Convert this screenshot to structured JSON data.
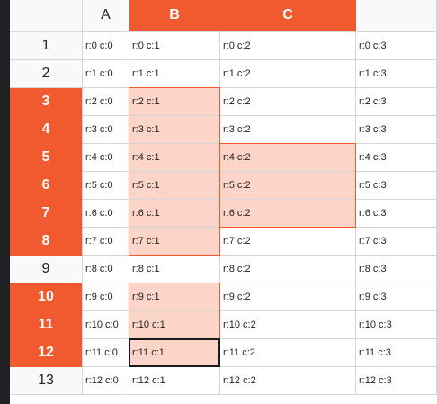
{
  "columns": [
    "",
    "A",
    "B",
    "C",
    ""
  ],
  "selected_columns": [
    "B",
    "C"
  ],
  "rows": [
    {
      "num": "1",
      "selected": false,
      "cells": [
        "r:0 c:0",
        "r:0 c:1",
        "r:0 c:2",
        "r:0 c:3"
      ]
    },
    {
      "num": "2",
      "selected": false,
      "cells": [
        "r:1 c:0",
        "r:1 c:1",
        "r:1 c:2",
        "r:1 c:3"
      ]
    },
    {
      "num": "3",
      "selected": true,
      "cells": [
        "r:2 c:0",
        "r:2 c:1",
        "r:2 c:2",
        "r:2 c:3"
      ]
    },
    {
      "num": "4",
      "selected": true,
      "cells": [
        "r:3 c:0",
        "r:3 c:1",
        "r:3 c:2",
        "r:3 c:3"
      ]
    },
    {
      "num": "5",
      "selected": true,
      "cells": [
        "r:4 c:0",
        "r:4 c:1",
        "r:4 c:2",
        "r:4 c:3"
      ]
    },
    {
      "num": "6",
      "selected": true,
      "cells": [
        "r:5 c:0",
        "r:5 c:1",
        "r:5 c:2",
        "r:5 c:3"
      ]
    },
    {
      "num": "7",
      "selected": true,
      "cells": [
        "r:6 c:0",
        "r:6 c:1",
        "r:6 c:2",
        "r:6 c:3"
      ]
    },
    {
      "num": "8",
      "selected": true,
      "cells": [
        "r:7 c:0",
        "r:7 c:1",
        "r:7 c:2",
        "r:7 c:3"
      ]
    },
    {
      "num": "9",
      "selected": false,
      "cells": [
        "r:8 c:0",
        "r:8 c:1",
        "r:8 c:2",
        "r:8 c:3"
      ]
    },
    {
      "num": "10",
      "selected": true,
      "cells": [
        "r:9 c:0",
        "r:9 c:1",
        "r:9 c:2",
        "r:9 c:3"
      ]
    },
    {
      "num": "11",
      "selected": true,
      "cells": [
        "r:10 c:0",
        "r:10 c:1",
        "r:10 c:2",
        "r:10 c:3"
      ]
    },
    {
      "num": "12",
      "selected": true,
      "cells": [
        "r:11 c:0",
        "r:11 c:1",
        "r:11 c:2",
        "r:11 c:3"
      ]
    },
    {
      "num": "13",
      "selected": false,
      "cells": [
        "r:12 c:0",
        "r:12 c:1",
        "r:12 c:2",
        "r:12 c:3"
      ]
    }
  ],
  "highlighted_cells": [
    "r:2 c:1",
    "r:3 c:1",
    "r:4 c:1",
    "r:5 c:1",
    "r:6 c:1",
    "r:7 c:1",
    "r:4 c:2",
    "r:5 c:2",
    "r:6 c:2",
    "r:9 c:1",
    "r:10 c:1",
    "r:11 c:1"
  ],
  "active_cell": "r:11 c:1",
  "colors": {
    "accent": "#f05a2e",
    "selection_fill": "#fdd4c8",
    "header_bg": "#f8f9fa",
    "gridline": "#d6d6d6"
  }
}
